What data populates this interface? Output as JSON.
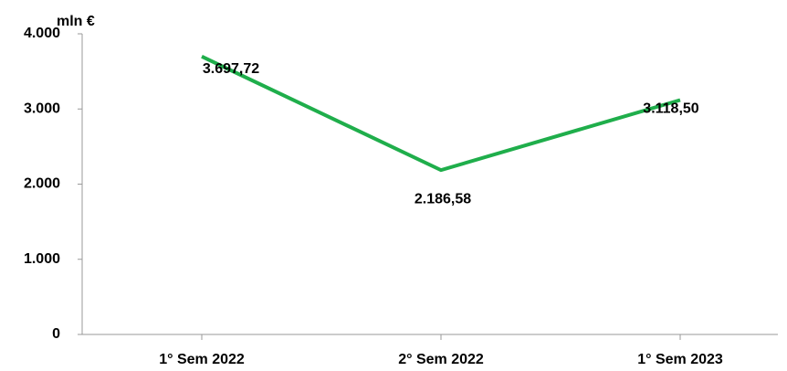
{
  "chart_data": {
    "type": "line",
    "y_axis_label": "mln €",
    "categories": [
      "1° Sem 2022",
      "2° Sem 2022",
      "1° Sem 2023"
    ],
    "values": [
      3697.72,
      2186.58,
      3118.5
    ],
    "value_labels": [
      "3.697,72",
      "2.186,58",
      "3.118,50"
    ],
    "color": "#1fae4b",
    "ylim": [
      0,
      4000
    ],
    "yticks": [
      0,
      {
        "value": 1000,
        "label": "1.000"
      },
      {
        "value": 2000,
        "label": "2.000"
      },
      {
        "value": 3000,
        "label": "3.000"
      },
      {
        "value": 4000,
        "label": "4.000"
      }
    ],
    "grid": false
  }
}
